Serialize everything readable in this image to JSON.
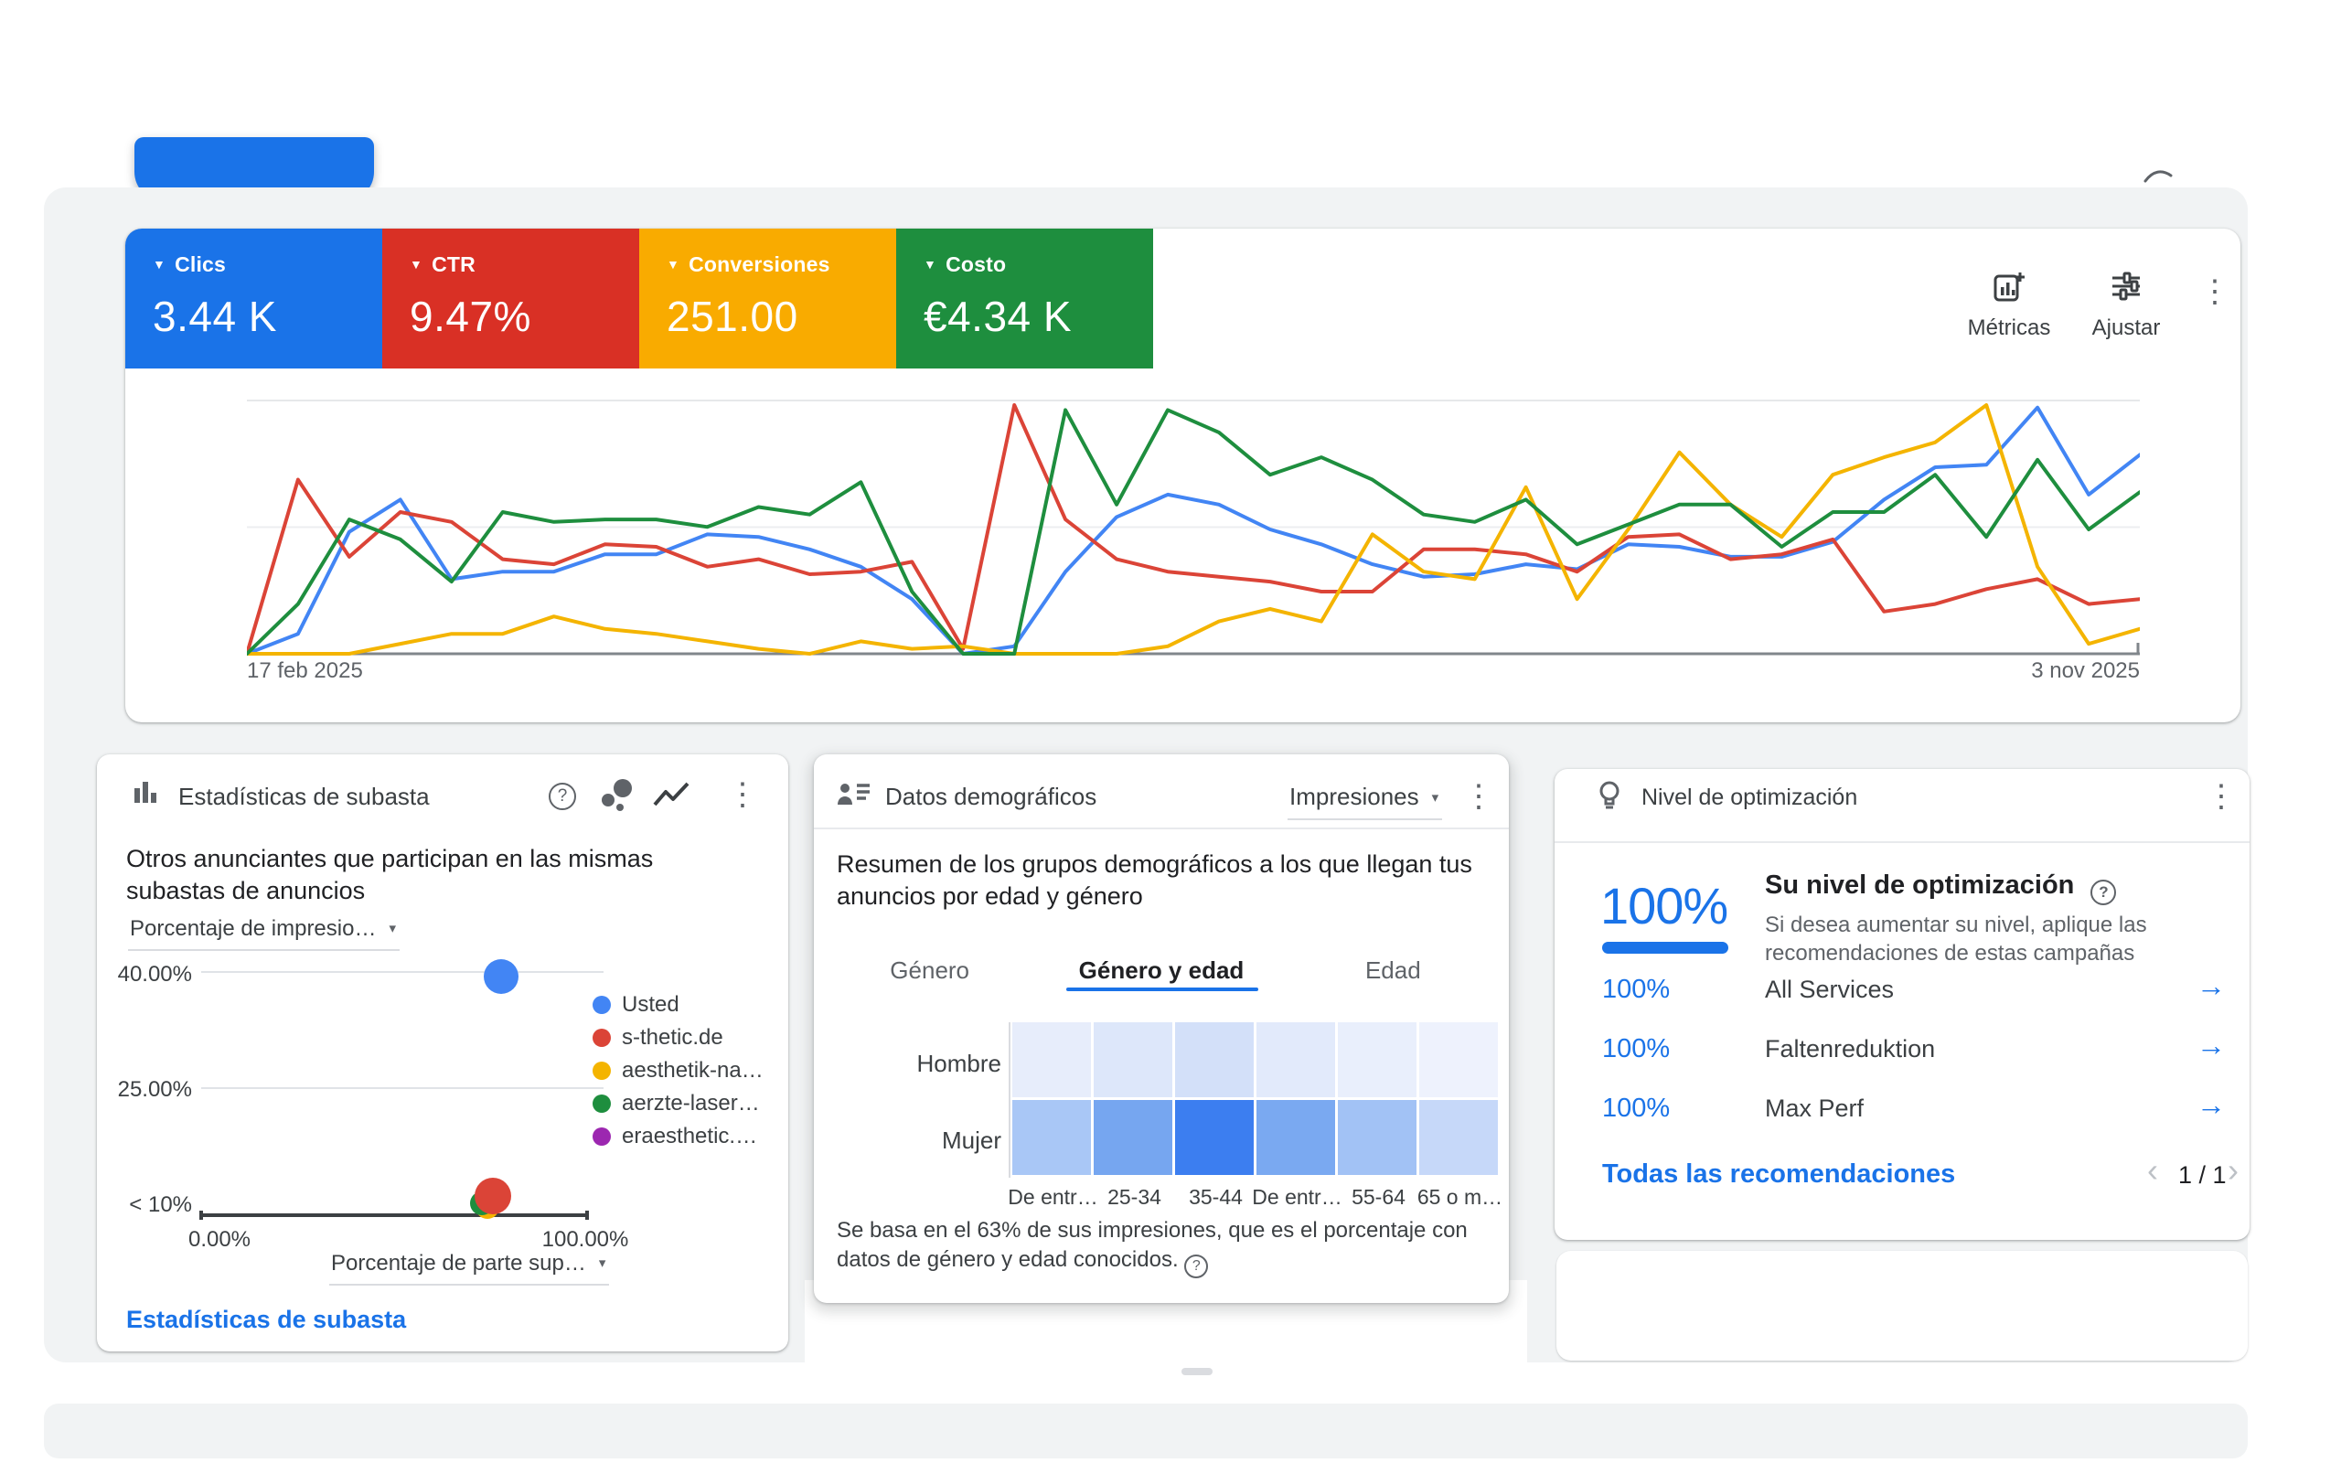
{
  "icons": {
    "caret_down_small": "▼",
    "caret_down": "▾",
    "more_vert": "⋮",
    "arrow_right": "→",
    "help": "?",
    "chevron_left": "‹",
    "chevron_right": "›"
  },
  "metrics_card": {
    "chips": [
      {
        "label": "Clics",
        "value": "3.44 K",
        "color": "#1a73e8"
      },
      {
        "label": "CTR",
        "value": "9.47%",
        "color": "#d93025"
      },
      {
        "label": "Conversiones",
        "value": "251.00",
        "color": "#f9ab00"
      },
      {
        "label": "Costo",
        "value": "€4.34 K",
        "color": "#1e8e3e"
      }
    ],
    "toolbar": {
      "metrics_label": "Métricas",
      "adjust_label": "Ajustar"
    },
    "x_start_label": "17 feb 2025",
    "x_end_label": "3 nov 2025"
  },
  "auction_card": {
    "title": "Estadísticas de subasta",
    "intro": "Otros anunciantes que participan en las mismas subastas de anuncios",
    "y_dropdown": "Porcentaje de impresio…",
    "x_dropdown": "Porcentaje de parte sup…",
    "y_ticks": [
      "40.00%",
      "25.00%",
      "< 10%"
    ],
    "x_ticks": [
      "0.00%",
      "100.00%"
    ],
    "footer_link": "Estadísticas de subasta"
  },
  "demographics_card": {
    "title": "Datos demográficos",
    "dropdown": "Impresiones",
    "description": "Resumen de los grupos demográficos a los que llegan tus anuncios por edad y género",
    "tabs": [
      {
        "label": "Género",
        "active": false
      },
      {
        "label": "Género y edad",
        "active": true
      },
      {
        "label": "Edad",
        "active": false
      }
    ],
    "footnote": "Se basa en el 63% de sus impresiones, que es el porcentaje con datos de género y edad conocidos."
  },
  "optimization_card": {
    "title": "Nivel de optimización",
    "score": "100%",
    "headline": "Su nivel de optimización",
    "subtext": "Si desea aumentar su nivel, aplique las recomendaciones de estas campañas",
    "campaigns": [
      {
        "score": "100%",
        "name": "All Services"
      },
      {
        "score": "100%",
        "name": "Faltenreduktion"
      },
      {
        "score": "100%",
        "name": "Max Perf"
      }
    ],
    "footer_link": "Todas las recomendaciones",
    "pagination": "1 / 1"
  },
  "chart_data": [
    {
      "type": "line",
      "x_start": "17 feb 2025",
      "x_end": "3 nov 2025",
      "note": "no y-axis tick labels shown; values are relative heights in % of plot (0 = baseline, 100 = top gridline); gridlines at 0/50/100",
      "series": [
        {
          "name": "Clics",
          "color": "#4285f4",
          "values": [
            0,
            8,
            49,
            62,
            30,
            33,
            33,
            40,
            40,
            48,
            47,
            42,
            35,
            22,
            0,
            3,
            33,
            55,
            64,
            60,
            50,
            44,
            36,
            31,
            32,
            36,
            34,
            44,
            43,
            39,
            39,
            45,
            62,
            75,
            76,
            99,
            64,
            80
          ]
        },
        {
          "name": "CTR",
          "color": "#db4437",
          "values": [
            0,
            70,
            39,
            57,
            53,
            38,
            36,
            44,
            43,
            35,
            38,
            32,
            33,
            37,
            2,
            100,
            54,
            38,
            33,
            31,
            29,
            25,
            25,
            42,
            42,
            40,
            33,
            47,
            48,
            38,
            40,
            46,
            17,
            20,
            26,
            30,
            20,
            22
          ]
        },
        {
          "name": "Conversiones",
          "color": "#f4b400",
          "values": [
            0,
            0,
            0,
            4,
            8,
            8,
            15,
            10,
            8,
            5,
            2,
            0,
            5,
            2,
            3,
            0,
            0,
            0,
            3,
            13,
            18,
            13,
            48,
            33,
            30,
            67,
            22,
            50,
            81,
            60,
            47,
            72,
            79,
            85,
            100,
            35,
            4,
            10
          ]
        },
        {
          "name": "Costo",
          "color": "#1e8e3e",
          "values": [
            0,
            20,
            54,
            46,
            29,
            57,
            53,
            54,
            54,
            51,
            59,
            56,
            69,
            25,
            0,
            0,
            98,
            60,
            98,
            89,
            72,
            79,
            70,
            56,
            53,
            62,
            44,
            52,
            60,
            60,
            43,
            57,
            57,
            72,
            47,
            78,
            50,
            65
          ]
        }
      ]
    },
    {
      "type": "scatter",
      "xlabel": "Porcentaje de parte sup…",
      "ylabel": "Porcentaje de impresio…",
      "x_ticks": [
        "0.00%",
        "100.00%"
      ],
      "y_ticks": [
        "40.00%",
        "25.00%",
        "< 10%"
      ],
      "points": [
        {
          "label": "Usted",
          "color": "#4285f4",
          "x": 78,
          "y": 40,
          "r": 19
        },
        {
          "label": "s-thetic.de",
          "color": "#db4437",
          "x": 76,
          "y": 11,
          "r": 20
        },
        {
          "label": "aesthetik-na…",
          "color": "#f4b400",
          "x": 74.5,
          "y": 9.5,
          "r": 13
        },
        {
          "label": "aerzte-laser…",
          "color": "#1e8e3e",
          "x": 73,
          "y": 10,
          "r": 13
        },
        {
          "label": "eraesthetic.…",
          "color": "#9c27b0",
          "x": 75.5,
          "y": 10.5,
          "r": 10
        }
      ],
      "legend": [
        "Usted",
        "s-thetic.de",
        "aesthetik-na…",
        "aerzte-laser…",
        "eraesthetic.…"
      ]
    },
    {
      "type": "heatmap",
      "rows": [
        "Hombre",
        "Mujer"
      ],
      "columns": [
        "De entr…",
        "25-34",
        "35-44",
        "De entr…",
        "55-64",
        "65 o m…"
      ],
      "values": [
        [
          0.14,
          0.18,
          0.22,
          0.13,
          0.1,
          0.06
        ],
        [
          0.42,
          0.68,
          1.0,
          0.66,
          0.45,
          0.28
        ]
      ],
      "cell_colors": [
        [
          "#e7edfb",
          "#dde7fa",
          "#d3e0f9",
          "#e2eafb",
          "#e9effc",
          "#eef2fd"
        ],
        [
          "#a9c7f6",
          "#76a6f0",
          "#3c7ef0",
          "#7aa9f1",
          "#a2c2f5",
          "#c6d8f9"
        ]
      ]
    }
  ]
}
